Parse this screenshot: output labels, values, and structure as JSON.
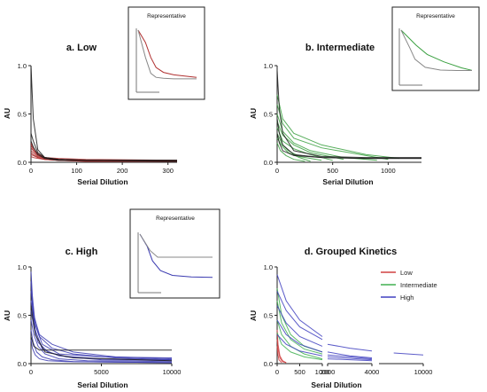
{
  "chart_data": [
    {
      "type": "line",
      "title": "a. Low",
      "xlabel": "Serial Dilution",
      "ylabel": "AU",
      "xlim": [
        0,
        320
      ],
      "ylim": [
        0,
        1.0
      ],
      "xticks": [
        "0",
        "100",
        "200",
        "300"
      ],
      "yticks": [
        "0.0",
        "0.5",
        "1.0"
      ],
      "inset_title": "Representative",
      "colors": {
        "group": "#b03030",
        "reference": "#1a1a1a"
      },
      "series": [
        {
          "group": "reference",
          "x": [
            0,
            5,
            15,
            30,
            60,
            120,
            320
          ],
          "y": [
            1.0,
            0.45,
            0.13,
            0.05,
            0.03,
            0.02,
            0.02
          ]
        },
        {
          "group": "reference",
          "x": [
            0,
            5,
            15,
            30,
            60,
            120,
            320
          ],
          "y": [
            0.3,
            0.22,
            0.1,
            0.05,
            0.03,
            0.02,
            0.02
          ]
        },
        {
          "group": "reference",
          "x": [
            0,
            5,
            15,
            30,
            60,
            120,
            320
          ],
          "y": [
            0.22,
            0.16,
            0.08,
            0.04,
            0.02,
            0.02,
            0.01
          ]
        },
        {
          "group": "Low",
          "x": [
            0,
            5,
            15,
            30,
            60,
            120,
            320
          ],
          "y": [
            0.2,
            0.15,
            0.09,
            0.05,
            0.03,
            0.02,
            0.01
          ]
        },
        {
          "group": "Low",
          "x": [
            0,
            5,
            15,
            30,
            60,
            120,
            320
          ],
          "y": [
            0.18,
            0.13,
            0.08,
            0.05,
            0.04,
            0.03,
            0.02
          ]
        },
        {
          "group": "Low",
          "x": [
            0,
            5,
            15,
            30,
            60,
            120,
            320
          ],
          "y": [
            0.15,
            0.12,
            0.07,
            0.04,
            0.03,
            0.02,
            0.01
          ]
        },
        {
          "group": "Low",
          "x": [
            0,
            5,
            15,
            30,
            60,
            120,
            320
          ],
          "y": [
            0.12,
            0.1,
            0.06,
            0.04,
            0.03,
            0.02,
            0.02
          ]
        },
        {
          "group": "Low",
          "x": [
            0,
            5,
            15,
            30,
            60,
            120,
            320
          ],
          "y": [
            0.1,
            0.08,
            0.05,
            0.03,
            0.02,
            0.01,
            0.01
          ]
        },
        {
          "group": "Low",
          "x": [
            0,
            5,
            15,
            30,
            60,
            120,
            320
          ],
          "y": [
            0.08,
            0.07,
            0.05,
            0.03,
            0.02,
            0.02,
            0.01
          ]
        },
        {
          "group": "Low",
          "x": [
            0,
            5,
            15,
            30,
            60,
            120,
            320
          ],
          "y": [
            0.06,
            0.05,
            0.04,
            0.03,
            0.02,
            0.01,
            0.01
          ]
        }
      ]
    },
    {
      "type": "line",
      "title": "b. Intermediate",
      "xlabel": "Serial Dilution",
      "ylabel": "AU",
      "xlim": [
        0,
        1300
      ],
      "ylim": [
        0,
        1.0
      ],
      "xticks": [
        "0",
        "500",
        "1000"
      ],
      "yticks": [
        "0.0",
        "0.5",
        "1.0"
      ],
      "inset_title": "Representative",
      "colors": {
        "group": "#3aa040",
        "reference": "#1a1a1a"
      },
      "series": [
        {
          "group": "reference",
          "x": [
            0,
            20,
            50,
            150,
            400,
            800,
            1300
          ],
          "y": [
            0.95,
            0.55,
            0.3,
            0.12,
            0.06,
            0.05,
            0.05
          ]
        },
        {
          "group": "reference",
          "x": [
            0,
            20,
            50,
            150,
            400,
            800,
            1300
          ],
          "y": [
            0.45,
            0.3,
            0.18,
            0.08,
            0.05,
            0.04,
            0.04
          ]
        },
        {
          "group": "reference",
          "x": [
            0,
            20,
            50,
            150,
            400,
            800,
            1300
          ],
          "y": [
            0.3,
            0.2,
            0.12,
            0.07,
            0.05,
            0.04,
            0.04
          ]
        },
        {
          "group": "Intermediate",
          "x": [
            0,
            50,
            150,
            400,
            800,
            1100
          ],
          "y": [
            0.7,
            0.45,
            0.3,
            0.18,
            0.08,
            0.04
          ]
        },
        {
          "group": "Intermediate",
          "x": [
            0,
            50,
            150,
            400,
            800,
            1000
          ],
          "y": [
            0.6,
            0.4,
            0.25,
            0.15,
            0.07,
            0.03
          ]
        },
        {
          "group": "Intermediate",
          "x": [
            0,
            50,
            150,
            300,
            600,
            900
          ],
          "y": [
            0.5,
            0.32,
            0.2,
            0.12,
            0.05,
            0.02
          ]
        },
        {
          "group": "Intermediate",
          "x": [
            0,
            50,
            150,
            300,
            600
          ],
          "y": [
            0.42,
            0.28,
            0.18,
            0.1,
            0.03
          ]
        },
        {
          "group": "Intermediate",
          "x": [
            0,
            50,
            150,
            300,
            500
          ],
          "y": [
            0.36,
            0.22,
            0.14,
            0.08,
            0.02
          ]
        },
        {
          "group": "Intermediate",
          "x": [
            0,
            50,
            100,
            200,
            400
          ],
          "y": [
            0.3,
            0.18,
            0.12,
            0.06,
            0.02
          ]
        },
        {
          "group": "Intermediate",
          "x": [
            0,
            50,
            100,
            200,
            300
          ],
          "y": [
            0.25,
            0.16,
            0.1,
            0.05,
            0.01
          ]
        },
        {
          "group": "Intermediate",
          "x": [
            0,
            30,
            80,
            150,
            250
          ],
          "y": [
            0.2,
            0.12,
            0.07,
            0.03,
            0.01
          ]
        }
      ]
    },
    {
      "type": "line",
      "title": "c. High",
      "xlabel": "Serial Dilution",
      "ylabel": "AU",
      "xlim": [
        0,
        10000
      ],
      "ylim": [
        0,
        1.0
      ],
      "xticks": [
        "0",
        "5000",
        "10000"
      ],
      "yticks": [
        "0.0",
        "0.5",
        "1.0"
      ],
      "inset_title": "Representative",
      "colors": {
        "group": "#3a3ab0",
        "reference": "#1a1a1a"
      },
      "series": [
        {
          "group": "reference",
          "x": [
            0,
            200,
            600,
            10000
          ],
          "y": [
            0.28,
            0.18,
            0.14,
            0.14
          ]
        },
        {
          "group": "reference",
          "x": [
            0,
            300,
            1000,
            3000,
            10000
          ],
          "y": [
            0.6,
            0.3,
            0.12,
            0.06,
            0.03
          ]
        },
        {
          "group": "High",
          "x": [
            0,
            100,
            300,
            800,
            2000,
            5000,
            10000
          ],
          "y": [
            0.95,
            0.7,
            0.4,
            0.2,
            0.1,
            0.07,
            0.06
          ]
        },
        {
          "group": "High",
          "x": [
            0,
            100,
            300,
            800,
            2000,
            5000,
            10000
          ],
          "y": [
            0.85,
            0.6,
            0.35,
            0.15,
            0.08,
            0.05,
            0.04
          ]
        },
        {
          "group": "High",
          "x": [
            0,
            200,
            600,
            1500,
            3000,
            6000,
            10000
          ],
          "y": [
            0.75,
            0.5,
            0.3,
            0.2,
            0.12,
            0.07,
            0.05
          ]
        },
        {
          "group": "High",
          "x": [
            0,
            200,
            600,
            1500,
            3000,
            6000,
            10000
          ],
          "y": [
            0.65,
            0.45,
            0.28,
            0.16,
            0.1,
            0.06,
            0.04
          ]
        },
        {
          "group": "High",
          "x": [
            0,
            200,
            500,
            1200,
            2500,
            5000,
            10000
          ],
          "y": [
            0.55,
            0.38,
            0.22,
            0.12,
            0.07,
            0.04,
            0.03
          ]
        },
        {
          "group": "High",
          "x": [
            0,
            200,
            500,
            1000,
            2000,
            4000,
            10000
          ],
          "y": [
            0.45,
            0.3,
            0.18,
            0.1,
            0.05,
            0.03,
            0.02
          ]
        },
        {
          "group": "High",
          "x": [
            0,
            150,
            400,
            800,
            1500,
            3000,
            10000
          ],
          "y": [
            0.35,
            0.22,
            0.12,
            0.07,
            0.04,
            0.02,
            0.01
          ]
        },
        {
          "group": "High",
          "x": [
            0,
            100,
            300,
            600,
            1200,
            2500,
            10000
          ],
          "y": [
            0.25,
            0.16,
            0.09,
            0.05,
            0.03,
            0.02,
            0.01
          ]
        }
      ]
    },
    {
      "type": "line",
      "title": "d. Grouped Kinetics",
      "xlabel": "Serial Dilution",
      "ylabel": "AU",
      "ylim": [
        0,
        1.0
      ],
      "yticks": [
        "0.0",
        "0.5",
        "1.0"
      ],
      "x_segments": [
        {
          "xlim": [
            0,
            1000
          ],
          "xticks": [
            "0",
            "500",
            "1000"
          ]
        },
        {
          "xlim": [
            2000,
            4000
          ],
          "xticks": [
            "2000",
            "4000"
          ]
        },
        {
          "xlim": [
            4000,
            10000
          ],
          "xticks": [
            "10000"
          ]
        }
      ],
      "legend": [
        {
          "label": "Low",
          "color": "#d04040"
        },
        {
          "label": "Intermediate",
          "color": "#40b050"
        },
        {
          "label": "High",
          "color": "#4040c0"
        }
      ],
      "legend_position": "right",
      "series": [
        {
          "group": "Low",
          "x": [
            0,
            20,
            60,
            120,
            200
          ],
          "y": [
            0.35,
            0.2,
            0.08,
            0.03,
            0.01
          ]
        },
        {
          "group": "Low",
          "x": [
            0,
            20,
            60,
            120,
            200
          ],
          "y": [
            0.25,
            0.15,
            0.06,
            0.02,
            0.01
          ]
        },
        {
          "group": "Low",
          "x": [
            0,
            15,
            40,
            100
          ],
          "y": [
            0.18,
            0.1,
            0.04,
            0.01
          ]
        },
        {
          "group": "Intermediate",
          "x": [
            0,
            100,
            300,
            600,
            1000
          ],
          "y": [
            0.78,
            0.5,
            0.3,
            0.18,
            0.12
          ]
        },
        {
          "group": "Intermediate",
          "x": [
            0,
            100,
            300,
            600,
            1000
          ],
          "y": [
            0.65,
            0.42,
            0.25,
            0.15,
            0.1
          ]
        },
        {
          "group": "Intermediate",
          "x": [
            0,
            100,
            300,
            600,
            1000
          ],
          "y": [
            0.45,
            0.3,
            0.18,
            0.1,
            0.05
          ]
        },
        {
          "group": "Intermediate",
          "x": [
            0,
            100,
            300,
            600,
            1000
          ],
          "y": [
            0.32,
            0.2,
            0.12,
            0.07,
            0.04
          ]
        },
        {
          "group": "High",
          "x": [
            0,
            200,
            500,
            1000,
            2000,
            3000,
            4000,
            6000,
            10000
          ],
          "y": [
            0.92,
            0.65,
            0.45,
            0.28,
            0.2,
            0.16,
            0.13,
            0.11,
            0.09
          ]
        },
        {
          "group": "High",
          "x": [
            0,
            200,
            500,
            1000,
            2000,
            3000,
            4000
          ],
          "y": [
            0.75,
            0.55,
            0.38,
            0.25,
            0.12,
            0.08,
            0.06
          ]
        },
        {
          "group": "High",
          "x": [
            0,
            200,
            500,
            1000,
            2000,
            4000
          ],
          "y": [
            0.6,
            0.42,
            0.28,
            0.18,
            0.09,
            0.05
          ]
        },
        {
          "group": "High",
          "x": [
            0,
            200,
            500,
            1000,
            2000,
            4000
          ],
          "y": [
            0.45,
            0.3,
            0.2,
            0.12,
            0.07,
            0.04
          ]
        },
        {
          "group": "High",
          "x": [
            0,
            200,
            500,
            1000,
            2000,
            4000
          ],
          "y": [
            0.3,
            0.2,
            0.13,
            0.08,
            0.05,
            0.03
          ]
        }
      ]
    }
  ]
}
